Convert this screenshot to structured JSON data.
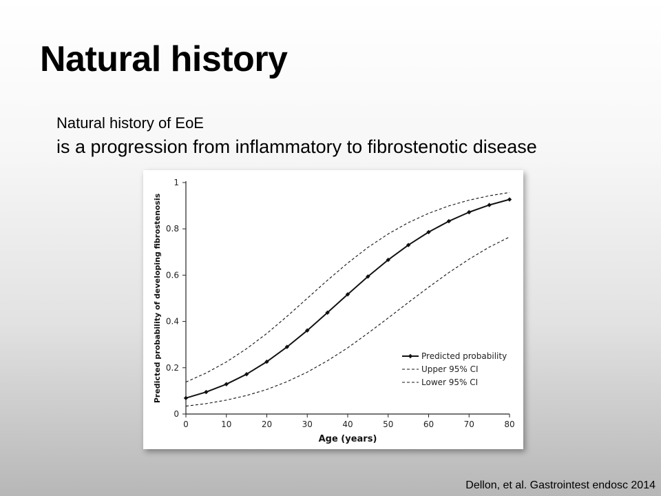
{
  "slide": {
    "title": "Natural history",
    "subtitle_line1": "Natural history of EoE",
    "subtitle_line2": "is a progression from inflammatory to fibrostenotic disease",
    "citation": "Dellon, et al. Gastrointest endosc 2014"
  },
  "chart_data": {
    "type": "line",
    "title": "",
    "xlabel": "Age (years)",
    "ylabel": "Predicted probability of developing fibrostenosis",
    "xlim": [
      0,
      80
    ],
    "ylim": [
      0,
      1
    ],
    "xticks": [
      0,
      10,
      20,
      30,
      40,
      50,
      60,
      70,
      80
    ],
    "yticks": [
      0,
      0.2,
      0.4,
      0.6,
      0.8,
      1
    ],
    "ytick_labels": [
      "0",
      "0.2",
      "0.4",
      "0.6",
      "0.8",
      "1"
    ],
    "grid": false,
    "legend_position": "bottom-right",
    "x": [
      0,
      5,
      10,
      15,
      20,
      25,
      30,
      35,
      40,
      45,
      50,
      55,
      60,
      65,
      70,
      75,
      80
    ],
    "series": [
      {
        "name": "Predicted probability",
        "style": "solid-diamond",
        "values": [
          0.069,
          0.095,
          0.129,
          0.172,
          0.226,
          0.29,
          0.361,
          0.438,
          0.517,
          0.594,
          0.666,
          0.73,
          0.786,
          0.833,
          0.872,
          0.903,
          0.927
        ]
      },
      {
        "name": "Upper 95% CI",
        "style": "dashed",
        "values": [
          0.138,
          0.177,
          0.225,
          0.282,
          0.348,
          0.422,
          0.5,
          0.578,
          0.652,
          0.72,
          0.778,
          0.827,
          0.867,
          0.899,
          0.924,
          0.943,
          0.957
        ]
      },
      {
        "name": "Lower 95% CI",
        "style": "dashed",
        "values": [
          0.034,
          0.045,
          0.06,
          0.08,
          0.106,
          0.14,
          0.181,
          0.23,
          0.286,
          0.349,
          0.415,
          0.482,
          0.548,
          0.611,
          0.669,
          0.721,
          0.765
        ]
      }
    ]
  }
}
